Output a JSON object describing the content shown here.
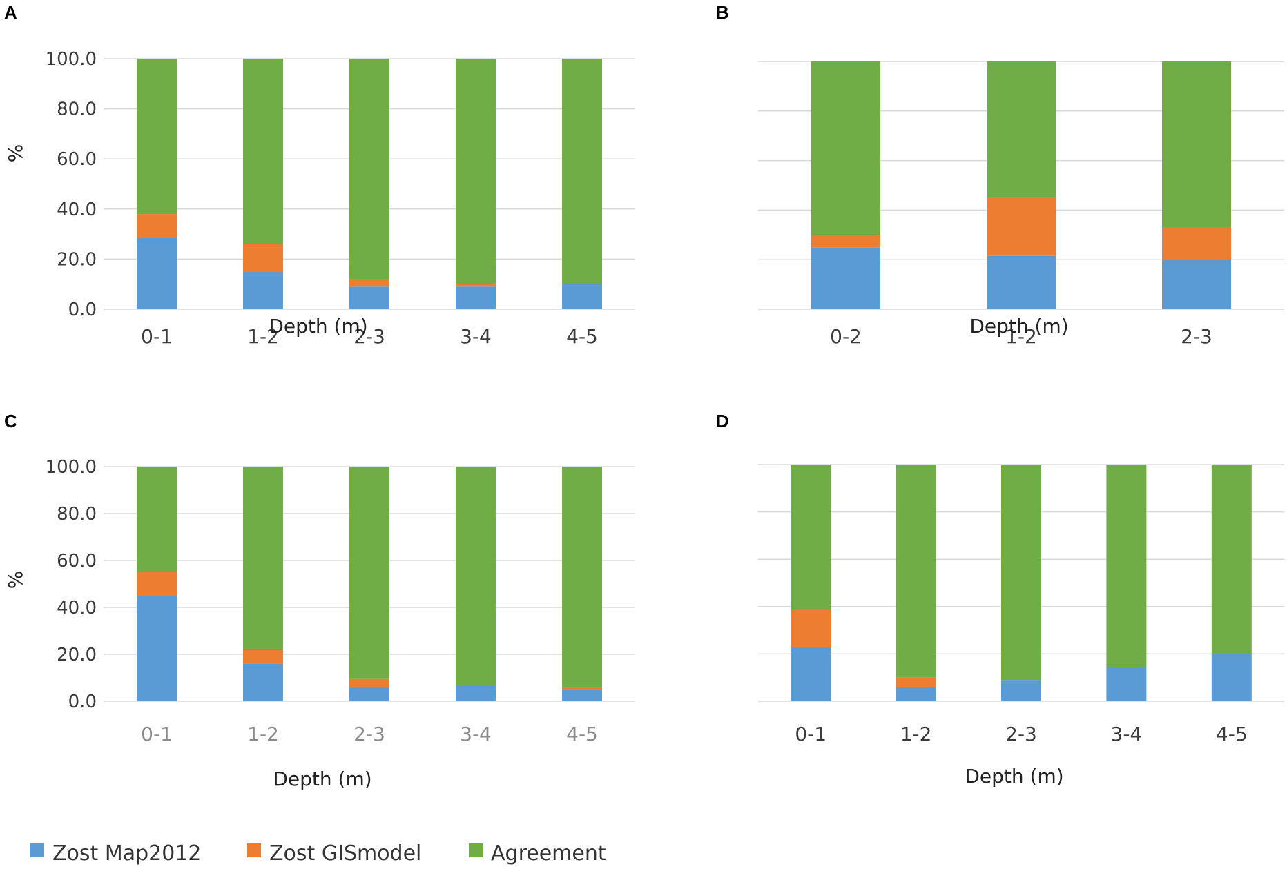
{
  "chart_data": [
    {
      "panel": "A",
      "type": "bar",
      "stacked": true,
      "categories": [
        "0-1",
        "1-2",
        "2-3",
        "3-4",
        "4-5"
      ],
      "series": [
        {
          "name": "Zost Map2012",
          "values": [
            28.5,
            15.0,
            9.0,
            9.0,
            10.0
          ]
        },
        {
          "name": "Zost GISmodel",
          "values": [
            9.5,
            11.0,
            3.0,
            1.0,
            0.0
          ]
        },
        {
          "name": "Agreement",
          "values": [
            62.0,
            74.0,
            88.0,
            90.0,
            90.0
          ]
        }
      ],
      "xlabel": "Depth (m)",
      "ylabel": "%",
      "ylim": [
        0,
        100
      ],
      "yticks": [
        "0.0",
        "20.0",
        "40.0",
        "60.0",
        "80.0",
        "100.0"
      ],
      "show_y_labels": true,
      "grid": true
    },
    {
      "panel": "B",
      "type": "bar",
      "stacked": true,
      "categories": [
        "0-2",
        "1-2",
        "2-3"
      ],
      "series": [
        {
          "name": "Zost Map2012",
          "values": [
            25.0,
            21.5,
            20.0
          ]
        },
        {
          "name": "Zost GISmodel",
          "values": [
            5.0,
            23.5,
            13.0
          ]
        },
        {
          "name": "Agreement",
          "values": [
            70.0,
            55.0,
            67.0
          ]
        }
      ],
      "xlabel": "Depth (m)",
      "ylabel": "",
      "ylim": [
        0,
        100
      ],
      "yticks": [
        "0.0",
        "20.0",
        "40.0",
        "60.0",
        "80.0",
        "100.0"
      ],
      "show_y_labels": false,
      "grid": true
    },
    {
      "panel": "C",
      "type": "bar",
      "stacked": true,
      "categories": [
        "0-1",
        "1-2",
        "2-3",
        "3-4",
        "4-5"
      ],
      "series": [
        {
          "name": "Zost Map2012",
          "values": [
            45.0,
            16.0,
            6.0,
            7.0,
            5.0
          ]
        },
        {
          "name": "Zost GISmodel",
          "values": [
            10.0,
            6.0,
            3.5,
            0.0,
            1.0
          ]
        },
        {
          "name": "Agreement",
          "values": [
            45.0,
            78.0,
            90.5,
            93.0,
            94.0
          ]
        }
      ],
      "xlabel": "Depth (m)",
      "ylabel": "%",
      "ylim": [
        0,
        100
      ],
      "yticks": [
        "0.0",
        "20.0",
        "40.0",
        "60.0",
        "80.0",
        "100.0"
      ],
      "show_y_labels": true,
      "grid": true
    },
    {
      "panel": "D",
      "type": "bar",
      "stacked": true,
      "categories": [
        "0-1",
        "1-2",
        "2-3",
        "3-4",
        "4-5"
      ],
      "series": [
        {
          "name": "Zost Map2012",
          "values": [
            23.0,
            6.0,
            9.0,
            14.5,
            20.0
          ]
        },
        {
          "name": "Zost GISmodel",
          "values": [
            15.5,
            4.0,
            0.0,
            0.0,
            0.0
          ]
        },
        {
          "name": "Agreement",
          "values": [
            61.5,
            90.0,
            91.0,
            85.5,
            80.0
          ]
        }
      ],
      "xlabel": "Depth (m)",
      "ylabel": "",
      "ylim": [
        0,
        100
      ],
      "yticks": [
        "0.0",
        "20.0",
        "40.0",
        "60.0",
        "80.0",
        "100.0"
      ],
      "show_y_labels": false,
      "grid": true
    }
  ],
  "legend": {
    "position": "bottom-left",
    "items": [
      {
        "label": "Zost Map2012",
        "color": "#5b9bd5"
      },
      {
        "label": "Zost GISmodel",
        "color": "#ed7d31"
      },
      {
        "label": "Agreement",
        "color": "#70ad47"
      }
    ]
  },
  "colors": {
    "Zost Map2012": "#5b9bd5",
    "Zost GISmodel": "#ed7d31",
    "Agreement": "#70ad47",
    "grid": "#d9d9d9"
  }
}
